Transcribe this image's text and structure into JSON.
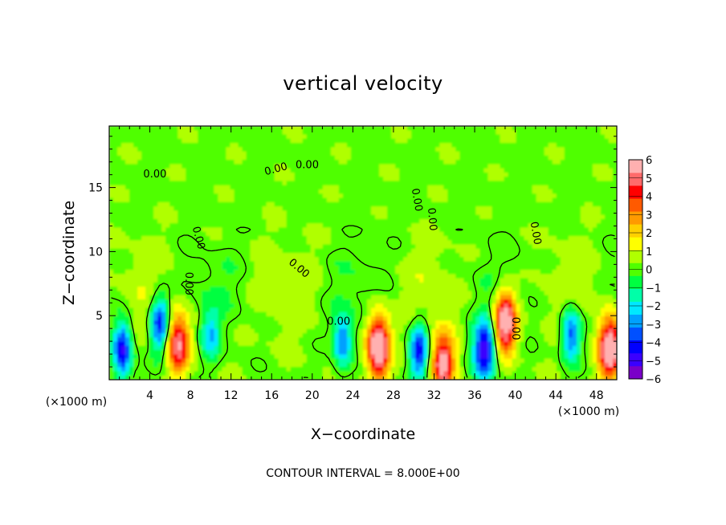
{
  "chart_data": {
    "type": "heatmap",
    "title": "vertical velocity",
    "xlabel": "X−coordinate",
    "ylabel": "Z−coordinate",
    "x_unit_left": "(×1000 m)",
    "x_unit_right": "(×1000 m)",
    "xlim": [
      0,
      50
    ],
    "ylim": [
      0,
      19.8
    ],
    "x_ticks": [
      4,
      8,
      12,
      16,
      20,
      24,
      28,
      32,
      36,
      40,
      44,
      48
    ],
    "y_ticks": [
      5,
      10,
      15
    ],
    "colorbar": {
      "min": -6,
      "max": 6,
      "ticks": [
        6,
        5,
        4,
        3,
        2,
        1,
        0,
        -1,
        -2,
        -3,
        -4,
        -5,
        -6
      ],
      "tick_labels": [
        "6",
        "5",
        "4",
        "3",
        "2",
        "1",
        "0",
        "−1",
        "−2",
        "−3",
        "−4",
        "−5",
        "−6"
      ],
      "colors": [
        "#7a00c8",
        "#3a00ff",
        "#0000ff",
        "#0050ff",
        "#00a0ff",
        "#00e8ff",
        "#00ffa8",
        "#00ff40",
        "#50ff00",
        "#b0ff00",
        "#ffff00",
        "#ffd000",
        "#ff9a00",
        "#ff5a00",
        "#ff0000",
        "#ff6a6a",
        "#ffb0b0"
      ]
    },
    "contour_labels": [
      "0.00",
      "0.00",
      "0.00",
      "0.00",
      "0.00",
      "0.00",
      "0.00",
      "0.00",
      "0.00",
      "0.00",
      "0.00"
    ],
    "features": [
      {
        "x": 1.3,
        "z": 2.3,
        "w": -5.0
      },
      {
        "x": 5.0,
        "z": 4.4,
        "w": -4.5
      },
      {
        "x": 6.8,
        "z": 2.8,
        "w": 5.2
      },
      {
        "x": 10.0,
        "z": 3.5,
        "w": -2.5
      },
      {
        "x": 23.0,
        "z": 3.0,
        "w": -3.5
      },
      {
        "x": 26.5,
        "z": 2.6,
        "w": 7.0
      },
      {
        "x": 30.5,
        "z": 2.2,
        "w": -4.5
      },
      {
        "x": 32.9,
        "z": 1.3,
        "w": 5.5
      },
      {
        "x": 37.0,
        "z": 2.3,
        "w": -5.5
      },
      {
        "x": 39.0,
        "z": 4.5,
        "w": 6.5
      },
      {
        "x": 45.5,
        "z": 3.6,
        "w": -4.0
      },
      {
        "x": 49.3,
        "z": 2.4,
        "w": 6.5
      }
    ],
    "footer": "CONTOUR INTERVAL = 8.000E+00"
  }
}
